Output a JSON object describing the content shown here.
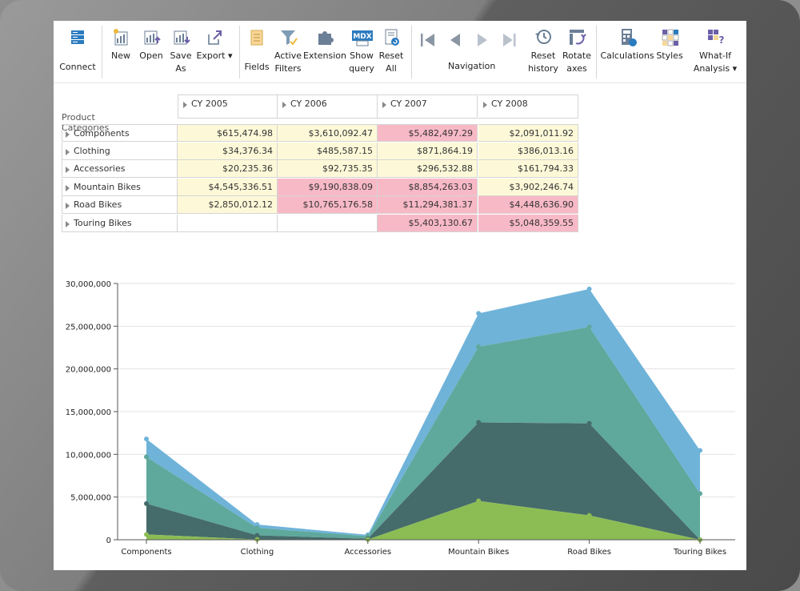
{
  "toolbar": {
    "connect": "Connect",
    "new": "New",
    "open": "Open",
    "save_as": "Save\nAs",
    "export": "Export",
    "fields": "Fields",
    "active_filters": "Active\nFilters",
    "extension": "Extension",
    "show_query": "Show\nquery",
    "reset_all": "Reset\nAll",
    "navigation": "Navigation",
    "reset_history": "Reset\nhistory",
    "rotate_axes": "Rotate\naxes",
    "calculations": "Calculations",
    "styles": "Styles",
    "what_if": "What-If\nAnalysis",
    "mdx_badge": "MDX"
  },
  "pivot": {
    "row_header_title": "Product Categories",
    "columns": [
      "CY 2005",
      "CY 2006",
      "CY 2007",
      "CY 2008"
    ],
    "rows": [
      {
        "label": "Components",
        "cells": [
          "$615,474.98",
          "$3,610,092.47",
          "$5,482,497.29",
          "$2,091,011.92"
        ],
        "fill": [
          "yellow",
          "yellow",
          "pink",
          "yellow"
        ]
      },
      {
        "label": "Clothing",
        "cells": [
          "$34,376.34",
          "$485,587.15",
          "$871,864.19",
          "$386,013.16"
        ],
        "fill": [
          "yellow",
          "yellow",
          "yellow",
          "yellow"
        ]
      },
      {
        "label": "Accessories",
        "cells": [
          "$20,235.36",
          "$92,735.35",
          "$296,532.88",
          "$161,794.33"
        ],
        "fill": [
          "yellow",
          "yellow",
          "yellow",
          "yellow"
        ]
      },
      {
        "label": "Mountain Bikes",
        "cells": [
          "$4,545,336.51",
          "$9,190,838.09",
          "$8,854,263.03",
          "$3,902,246.74"
        ],
        "fill": [
          "yellow",
          "pink",
          "pink",
          "yellow"
        ]
      },
      {
        "label": "Road Bikes",
        "cells": [
          "$2,850,012.12",
          "$10,765,176.58",
          "$11,294,381.37",
          "$4,448,636.90"
        ],
        "fill": [
          "yellow",
          "pink",
          "pink",
          "pink"
        ]
      },
      {
        "label": "Touring Bikes",
        "cells": [
          "",
          "",
          "$5,403,130.67",
          "$5,048,359.55"
        ],
        "fill": [
          "white",
          "white",
          "pink",
          "pink"
        ]
      }
    ]
  },
  "colors": {
    "yellow": "#fdf9d8",
    "pink": "#f8b9c6",
    "white": "#ffffff",
    "series_2005": "#8cbd54",
    "series_2006": "#456b6b",
    "series_2007": "#5fa89c",
    "series_2008": "#6fb3d9",
    "toolbar_blue": "#2b7bbf",
    "toolbar_purple": "#6b5fa8"
  },
  "chart_data": {
    "type": "area",
    "stacked": true,
    "categories": [
      "Components",
      "Clothing",
      "Accessories",
      "Mountain Bikes",
      "Road Bikes",
      "Touring Bikes"
    ],
    "series": [
      {
        "name": "CY 2005",
        "values": [
          615474.98,
          34376.34,
          20235.36,
          4545336.51,
          2850012.12,
          0
        ]
      },
      {
        "name": "CY 2006",
        "values": [
          3610092.47,
          485587.15,
          92735.35,
          9190838.09,
          10765176.58,
          0
        ]
      },
      {
        "name": "CY 2007",
        "values": [
          5482497.29,
          871864.19,
          296532.88,
          8854263.03,
          11294381.37,
          5403130.67
        ]
      },
      {
        "name": "CY 2008",
        "values": [
          2091011.92,
          386013.16,
          161794.33,
          3902246.74,
          4448636.9,
          5048359.55
        ]
      }
    ],
    "ylim": [
      0,
      30000000
    ],
    "yticks": [
      "0",
      "5,000,000",
      "10,000,000",
      "15,000,000",
      "20,000,000",
      "25,000,000",
      "30,000,000"
    ],
    "grid": true
  }
}
